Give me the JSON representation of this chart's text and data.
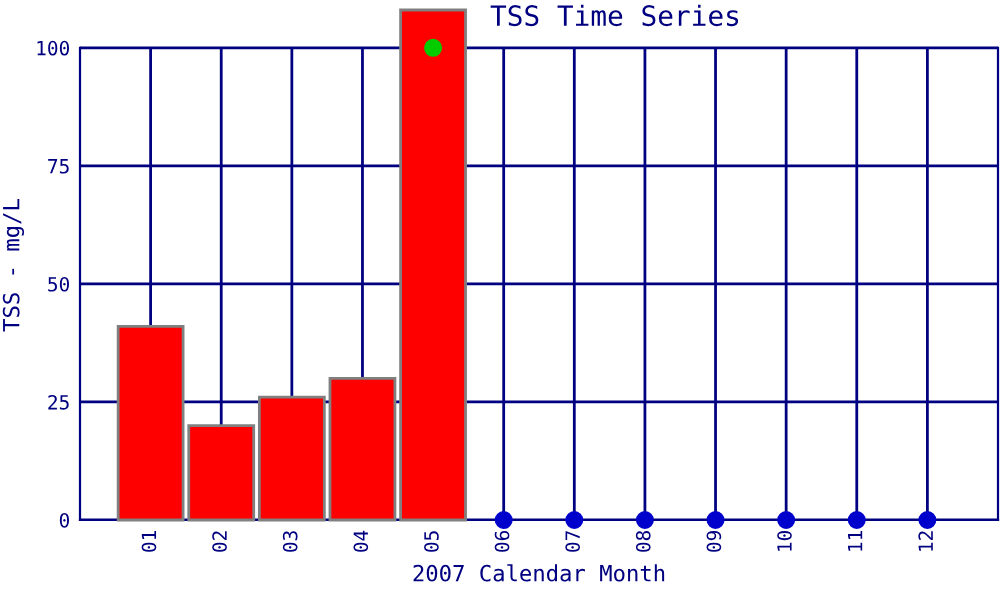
{
  "chart_data": {
    "type": "bar",
    "title": "TSS Time Series",
    "xlabel": "2007 Calendar Month",
    "ylabel": "TSS - mg/L",
    "categories": [
      "01",
      "02",
      "03",
      "04",
      "05",
      "06",
      "07",
      "08",
      "09",
      "10",
      "11",
      "12"
    ],
    "series": [
      {
        "color": "#ff0000",
        "values": [
          41,
          20,
          26,
          30,
          108,
          null,
          null,
          null,
          null,
          null,
          null,
          null
        ]
      },
      {
        "type": "scatter",
        "color": "#00cc00",
        "values": [
          null,
          null,
          null,
          null,
          100,
          null,
          null,
          null,
          null,
          null,
          null,
          null
        ]
      },
      {
        "type": "scatter",
        "color": "#0000cc",
        "values": [
          null,
          null,
          null,
          null,
          null,
          0,
          0,
          0,
          0,
          0,
          0,
          0
        ]
      }
    ],
    "ylim": [
      0,
      108
    ],
    "yticks": [
      0,
      25,
      50,
      75,
      100
    ],
    "grid": true,
    "marker": "circle",
    "legend": false
  }
}
